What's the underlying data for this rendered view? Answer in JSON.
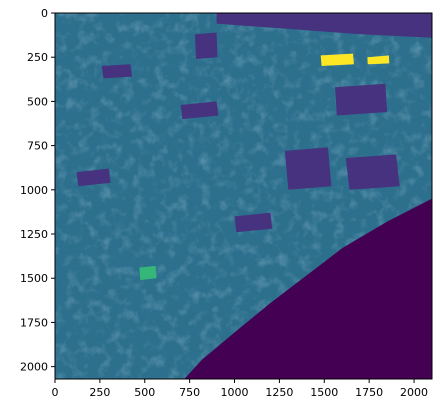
{
  "chart_data": {
    "type": "heatmap",
    "title": "",
    "xlabel": "",
    "ylabel": "",
    "colormap": "viridis",
    "image_extent": {
      "x": [
        0,
        2100
      ],
      "y": [
        2070,
        0
      ]
    },
    "xlim": [
      0,
      2100
    ],
    "ylim": [
      2070,
      0
    ],
    "y_axis_inverted": true,
    "x_ticks": [
      0,
      250,
      500,
      750,
      1000,
      1250,
      1500,
      1750,
      2000
    ],
    "x_tick_labels": [
      "0",
      "250",
      "500",
      "750",
      "1000",
      "1250",
      "1500",
      "1750",
      "2000"
    ],
    "y_ticks": [
      0,
      250,
      500,
      750,
      1000,
      1250,
      1500,
      1750,
      2000
    ],
    "y_tick_labels": [
      "0",
      "250",
      "500",
      "750",
      "1000",
      "1250",
      "1500",
      "1750",
      "2000"
    ],
    "grid": false,
    "legend": "none",
    "colors": {
      "background_class": "#440154",
      "low_class": "#46327e",
      "mid_class": "#31688e",
      "main_class": "#2d708e",
      "high_class": "#35b779",
      "peak_class": "#fde725"
    },
    "regions": [
      {
        "name": "diagonal-background-corner",
        "class": "background_class",
        "polygon": [
          [
            2100,
            1050
          ],
          [
            1850,
            1180
          ],
          [
            1600,
            1330
          ],
          [
            1420,
            1470
          ],
          [
            1200,
            1640
          ],
          [
            1020,
            1790
          ],
          [
            820,
            1960
          ],
          [
            720,
            2070
          ],
          [
            2100,
            2070
          ]
        ]
      },
      {
        "name": "top-dark-band",
        "class": "low_class",
        "polygon": [
          [
            900,
            0
          ],
          [
            2100,
            0
          ],
          [
            2100,
            140
          ],
          [
            1700,
            120
          ],
          [
            1300,
            90
          ],
          [
            900,
            60
          ]
        ]
      },
      {
        "name": "peak-strip-1",
        "class": "peak_class",
        "polygon": [
          [
            1480,
            240
          ],
          [
            1660,
            230
          ],
          [
            1665,
            290
          ],
          [
            1485,
            300
          ]
        ]
      },
      {
        "name": "peak-strip-2",
        "class": "peak_class",
        "polygon": [
          [
            1740,
            250
          ],
          [
            1860,
            240
          ],
          [
            1862,
            285
          ],
          [
            1742,
            290
          ]
        ]
      },
      {
        "name": "green-patch-1",
        "class": "high_class",
        "polygon": [
          [
            470,
            1440
          ],
          [
            560,
            1430
          ],
          [
            565,
            1500
          ],
          [
            475,
            1510
          ]
        ]
      },
      {
        "name": "dark-block-1",
        "class": "low_class",
        "polygon": [
          [
            780,
            120
          ],
          [
            900,
            110
          ],
          [
            905,
            250
          ],
          [
            785,
            260
          ]
        ]
      },
      {
        "name": "dark-block-2",
        "class": "low_class",
        "polygon": [
          [
            1560,
            420
          ],
          [
            1840,
            400
          ],
          [
            1850,
            560
          ],
          [
            1570,
            580
          ]
        ]
      },
      {
        "name": "dark-block-3",
        "class": "low_class",
        "polygon": [
          [
            1280,
            780
          ],
          [
            1520,
            760
          ],
          [
            1540,
            980
          ],
          [
            1300,
            1000
          ]
        ]
      },
      {
        "name": "dark-block-4",
        "class": "low_class",
        "polygon": [
          [
            1620,
            820
          ],
          [
            1900,
            800
          ],
          [
            1920,
            980
          ],
          [
            1640,
            1000
          ]
        ]
      },
      {
        "name": "dark-block-5",
        "class": "low_class",
        "polygon": [
          [
            260,
            300
          ],
          [
            420,
            290
          ],
          [
            430,
            360
          ],
          [
            270,
            370
          ]
        ]
      },
      {
        "name": "dark-block-6",
        "class": "low_class",
        "polygon": [
          [
            120,
            900
          ],
          [
            300,
            880
          ],
          [
            310,
            960
          ],
          [
            130,
            980
          ]
        ]
      },
      {
        "name": "dark-block-7",
        "class": "low_class",
        "polygon": [
          [
            700,
            520
          ],
          [
            900,
            500
          ],
          [
            910,
            580
          ],
          [
            710,
            600
          ]
        ]
      },
      {
        "name": "dark-block-8",
        "class": "low_class",
        "polygon": [
          [
            1000,
            1150
          ],
          [
            1200,
            1130
          ],
          [
            1210,
            1220
          ],
          [
            1010,
            1240
          ]
        ]
      }
    ]
  }
}
